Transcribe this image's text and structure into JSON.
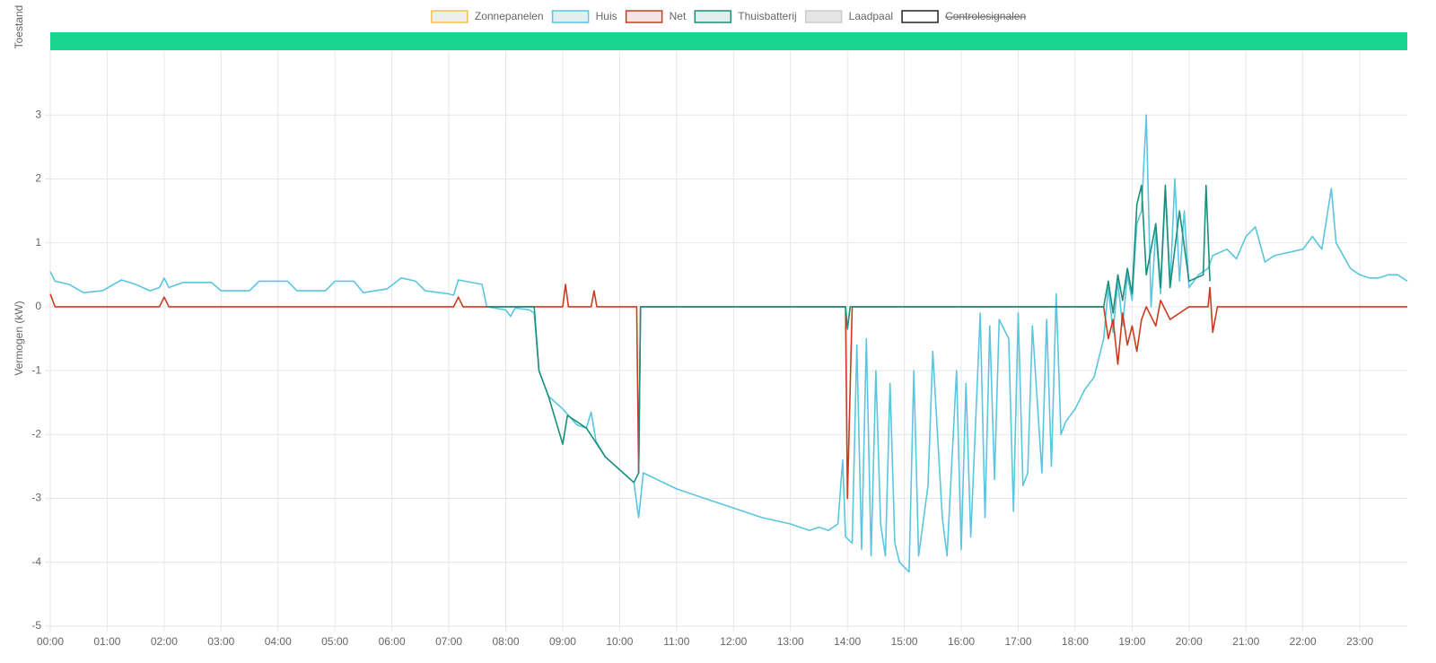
{
  "chart_data": {
    "type": "line",
    "y_label": "Vermogen (kW)",
    "status_bar": {
      "label": "Toestand",
      "color": "#1ad48f"
    },
    "xlim": [
      "00:00",
      "23:50"
    ],
    "xticks": [
      "00:00",
      "01:00",
      "02:00",
      "03:00",
      "04:00",
      "05:00",
      "06:00",
      "07:00",
      "08:00",
      "09:00",
      "10:00",
      "11:00",
      "12:00",
      "13:00",
      "14:00",
      "15:00",
      "16:00",
      "17:00",
      "18:00",
      "19:00",
      "20:00",
      "21:00",
      "22:00",
      "23:00"
    ],
    "ylim": [
      -5,
      4
    ],
    "yticks": [
      -5,
      -4,
      -3,
      -2,
      -1,
      0,
      1,
      2,
      3
    ],
    "grid": true,
    "legend": "top",
    "series": [
      {
        "name": "Zonnepanelen",
        "color": "#f2c14e",
        "fill": "#eeeeee"
      },
      {
        "name": "Huis",
        "color": "#5ac6df",
        "fill": "#e2eef1",
        "x": [
          "00:00",
          "00:05",
          "00:20",
          "00:35",
          "00:55",
          "01:15",
          "01:30",
          "01:45",
          "01:55",
          "02:00",
          "02:05",
          "02:20",
          "02:50",
          "03:00",
          "03:30",
          "03:40",
          "04:10",
          "04:20",
          "04:50",
          "05:00",
          "05:20",
          "05:30",
          "05:55",
          "06:10",
          "06:25",
          "06:35",
          "07:00",
          "07:05",
          "07:10",
          "07:35",
          "07:40",
          "08:00",
          "08:05",
          "08:10",
          "08:25",
          "08:30",
          "08:35",
          "08:45",
          "09:00",
          "09:15",
          "09:25",
          "09:30",
          "09:35",
          "09:45",
          "10:00",
          "10:15",
          "10:20",
          "10:25",
          "11:00",
          "11:30",
          "12:00",
          "12:30",
          "13:00",
          "13:20",
          "13:30",
          "13:40",
          "13:50",
          "13:55",
          "13:58",
          "14:05",
          "14:10",
          "14:15",
          "14:20",
          "14:25",
          "14:30",
          "14:35",
          "14:40",
          "14:45",
          "14:50",
          "14:55",
          "15:05",
          "15:10",
          "15:15",
          "15:25",
          "15:30",
          "15:40",
          "15:45",
          "15:55",
          "16:00",
          "16:05",
          "16:10",
          "16:20",
          "16:25",
          "16:30",
          "16:35",
          "16:40",
          "16:50",
          "16:55",
          "17:00",
          "17:05",
          "17:10",
          "17:15",
          "17:25",
          "17:30",
          "17:35",
          "17:40",
          "17:45",
          "17:50",
          "18:00",
          "18:10",
          "18:20",
          "18:30",
          "18:35",
          "18:40",
          "18:45",
          "18:50",
          "18:55",
          "19:00",
          "19:05",
          "19:10",
          "19:15",
          "19:20",
          "19:25",
          "19:30",
          "19:35",
          "19:40",
          "19:45",
          "19:50",
          "19:55",
          "20:00",
          "20:10",
          "20:20",
          "20:25",
          "20:40",
          "20:50",
          "21:00",
          "21:10",
          "21:20",
          "21:30",
          "22:00",
          "22:10",
          "22:20",
          "22:30",
          "22:35",
          "22:50",
          "23:00",
          "23:10",
          "23:20",
          "23:30",
          "23:40",
          "23:50"
        ],
        "values": [
          0.55,
          0.4,
          0.35,
          0.22,
          0.25,
          0.42,
          0.35,
          0.25,
          0.3,
          0.45,
          0.3,
          0.38,
          0.38,
          0.25,
          0.25,
          0.4,
          0.4,
          0.25,
          0.25,
          0.4,
          0.4,
          0.22,
          0.28,
          0.45,
          0.4,
          0.25,
          0.2,
          0.18,
          0.42,
          0.35,
          0,
          -0.05,
          -0.15,
          -0.02,
          -0.05,
          -0.1,
          -1.0,
          -1.4,
          -1.6,
          -1.85,
          -1.9,
          -1.65,
          -2.1,
          -2.35,
          -2.55,
          -2.75,
          -3.3,
          -2.6,
          -2.85,
          -3.0,
          -3.15,
          -3.3,
          -3.4,
          -3.5,
          -3.45,
          -3.5,
          -3.4,
          -2.4,
          -3.6,
          -3.7,
          -0.6,
          -3.8,
          -0.5,
          -3.9,
          -1.0,
          -3.4,
          -3.9,
          -1.2,
          -3.7,
          -4.0,
          -4.15,
          -1.0,
          -3.9,
          -2.8,
          -0.7,
          -3.3,
          -3.9,
          -1.0,
          -3.8,
          -1.2,
          -3.6,
          -0.1,
          -3.3,
          -0.3,
          -2.7,
          -0.2,
          -0.5,
          -3.2,
          -0.1,
          -2.8,
          -2.6,
          -0.3,
          -2.6,
          -0.2,
          -2.5,
          0.2,
          -2.0,
          -1.8,
          -1.6,
          -1.3,
          -1.1,
          -0.5,
          0.3,
          -0.4,
          0.4,
          -0.3,
          0.5,
          0.1,
          1.3,
          1.5,
          3.0,
          0.0,
          1.2,
          0.2,
          1.8,
          0.3,
          2.0,
          0.4,
          1.5,
          0.3,
          0.5,
          0.6,
          0.8,
          0.9,
          0.75,
          1.1,
          1.25,
          0.7,
          0.8,
          0.9,
          1.1,
          0.9,
          1.85,
          1.0,
          0.6,
          0.5,
          0.45,
          0.45,
          0.5,
          0.5,
          0.4
        ]
      },
      {
        "name": "Net",
        "color": "#cc3b1f",
        "fill": "#f2e6e4",
        "x": [
          "00:00",
          "00:05",
          "01:55",
          "02:00",
          "02:05",
          "07:05",
          "07:10",
          "07:15",
          "09:00",
          "09:03",
          "09:06",
          "09:30",
          "09:33",
          "09:36",
          "10:18",
          "10:20",
          "10:22",
          "13:58",
          "14:00",
          "14:05",
          "18:30",
          "18:35",
          "18:40",
          "18:45",
          "18:50",
          "18:55",
          "19:00",
          "19:05",
          "19:10",
          "19:15",
          "19:25",
          "19:30",
          "19:40",
          "19:50",
          "20:00",
          "20:20",
          "20:22",
          "20:25",
          "20:30",
          "23:50"
        ],
        "values": [
          0.2,
          0,
          0,
          0.15,
          0,
          0,
          0.15,
          0,
          0,
          0.35,
          0,
          0,
          0.25,
          0,
          0,
          -2.6,
          0,
          0,
          -3.0,
          0,
          0,
          -0.5,
          -0.2,
          -0.9,
          -0.1,
          -0.6,
          -0.3,
          -0.7,
          -0.2,
          0,
          -0.3,
          0.1,
          -0.2,
          -0.1,
          0,
          0,
          0.3,
          -0.4,
          0,
          0
        ]
      },
      {
        "name": "Thuisbatterij",
        "color": "#1a8f7a",
        "fill": "#e2eeec",
        "x": [
          "07:40",
          "08:30",
          "08:35",
          "08:45",
          "09:00",
          "09:05",
          "09:25",
          "09:45",
          "10:15",
          "10:20",
          "10:22",
          "13:58",
          "14:00",
          "14:03",
          "18:30",
          "18:35",
          "18:40",
          "18:45",
          "18:50",
          "18:55",
          "19:00",
          "19:05",
          "19:10",
          "19:15",
          "19:25",
          "19:30",
          "19:35",
          "19:40",
          "19:50",
          "20:00",
          "20:15",
          "20:18",
          "20:22"
        ],
        "values": [
          0,
          0,
          -1.0,
          -1.4,
          -2.15,
          -1.7,
          -1.9,
          -2.35,
          -2.75,
          -2.6,
          0,
          0,
          -0.35,
          0,
          0,
          0.4,
          -0.1,
          0.5,
          0.1,
          0.6,
          0.2,
          1.6,
          1.9,
          0.5,
          1.3,
          0.3,
          1.9,
          0.3,
          1.5,
          0.4,
          0.5,
          1.9,
          0.4
        ]
      },
      {
        "name": "Laadpaal",
        "color": "#cccccc",
        "fill": "#e4e4e4"
      },
      {
        "name": "Controlesignalen",
        "color": "#222222",
        "fill": "#ffffff",
        "hidden": true
      }
    ]
  }
}
